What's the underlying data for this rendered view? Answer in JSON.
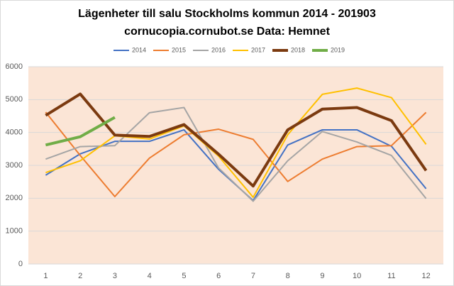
{
  "chart_data": {
    "type": "line",
    "title": "Lägenheter till salu Stockholms kommun 2014 - 201903",
    "subtitle": "cornucopia.cornubot.se Data: Hemnet",
    "x": [
      1,
      2,
      3,
      4,
      5,
      6,
      7,
      8,
      9,
      10,
      11,
      12
    ],
    "xlim": [
      0.5,
      12.5
    ],
    "xticks": [
      1,
      2,
      3,
      4,
      5,
      6,
      7,
      8,
      9,
      10,
      11,
      12
    ],
    "ylim": [
      0,
      6000
    ],
    "yticks": [
      0,
      1000,
      2000,
      3000,
      4000,
      5000,
      6000
    ],
    "grid": true,
    "legend": "top",
    "background": "#fbe5d6",
    "series": [
      {
        "name": "2014",
        "color": "#4472c4",
        "line_width": 2,
        "values": [
          2700,
          3350,
          3730,
          3730,
          4080,
          2880,
          1930,
          3620,
          4080,
          4080,
          3580,
          2290
        ]
      },
      {
        "name": "2015",
        "color": "#ed7d31",
        "line_width": 2,
        "values": [
          4620,
          3300,
          2050,
          3220,
          3930,
          4100,
          3790,
          2510,
          3190,
          3570,
          3600,
          4610
        ]
      },
      {
        "name": "2016",
        "color": "#a5a5a5",
        "line_width": 2,
        "values": [
          3190,
          3570,
          3600,
          4600,
          4760,
          2920,
          1910,
          3140,
          4030,
          3710,
          3300,
          1990
        ]
      },
      {
        "name": "2017",
        "color": "#ffc000",
        "line_width": 2,
        "values": [
          2780,
          3140,
          3900,
          3800,
          4200,
          3280,
          2030,
          3930,
          5160,
          5350,
          5060,
          3640
        ]
      },
      {
        "name": "2018",
        "color": "#7b3a10",
        "line_width": 4,
        "values": [
          4520,
          5170,
          3920,
          3880,
          4240,
          3340,
          2370,
          4080,
          4710,
          4760,
          4360,
          2840
        ]
      },
      {
        "name": "2019",
        "color": "#70ad47",
        "line_width": 4,
        "values": [
          3620,
          3870,
          4460,
          null,
          null,
          null,
          null,
          null,
          null,
          null,
          null,
          null
        ]
      }
    ]
  }
}
